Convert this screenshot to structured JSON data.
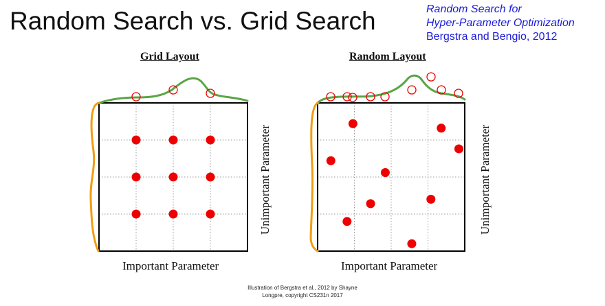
{
  "title": "Random Search vs. Grid Search",
  "reference": {
    "line1": "Random Search for",
    "line2": "Hyper-Parameter Optimization",
    "line3": "Bergstra and Bengio, 2012"
  },
  "panels": [
    {
      "id": "grid",
      "title": "Grid Layout",
      "xlabel": "Important Parameter",
      "ylabel": "Unimportant Parameter",
      "points": [
        [
          0.25,
          0.75
        ],
        [
          0.5,
          0.75
        ],
        [
          0.75,
          0.75
        ],
        [
          0.25,
          0.5
        ],
        [
          0.5,
          0.5
        ],
        [
          0.75,
          0.5
        ],
        [
          0.25,
          0.25
        ],
        [
          0.5,
          0.25
        ],
        [
          0.75,
          0.25
        ]
      ]
    },
    {
      "id": "random",
      "title": "Random Layout",
      "xlabel": "Important Parameter",
      "ylabel": "Unimportant Parameter",
      "points": [
        [
          0.24,
          0.86
        ],
        [
          0.84,
          0.83
        ],
        [
          0.96,
          0.69
        ],
        [
          0.09,
          0.61
        ],
        [
          0.46,
          0.53
        ],
        [
          0.77,
          0.35
        ],
        [
          0.36,
          0.32
        ],
        [
          0.2,
          0.2
        ],
        [
          0.64,
          0.05
        ]
      ]
    }
  ],
  "colors": {
    "point": "#ee0000",
    "top_curve": "#5aa545",
    "side_curve": "#f39c12",
    "grid_line": "#9a9a9a",
    "marker_ring": "#ee0000"
  },
  "credit": {
    "line1": "Illustration of Bergstra et al., 2012 by Shayne",
    "line2": "Longpre, copyright CS231n 2017"
  }
}
